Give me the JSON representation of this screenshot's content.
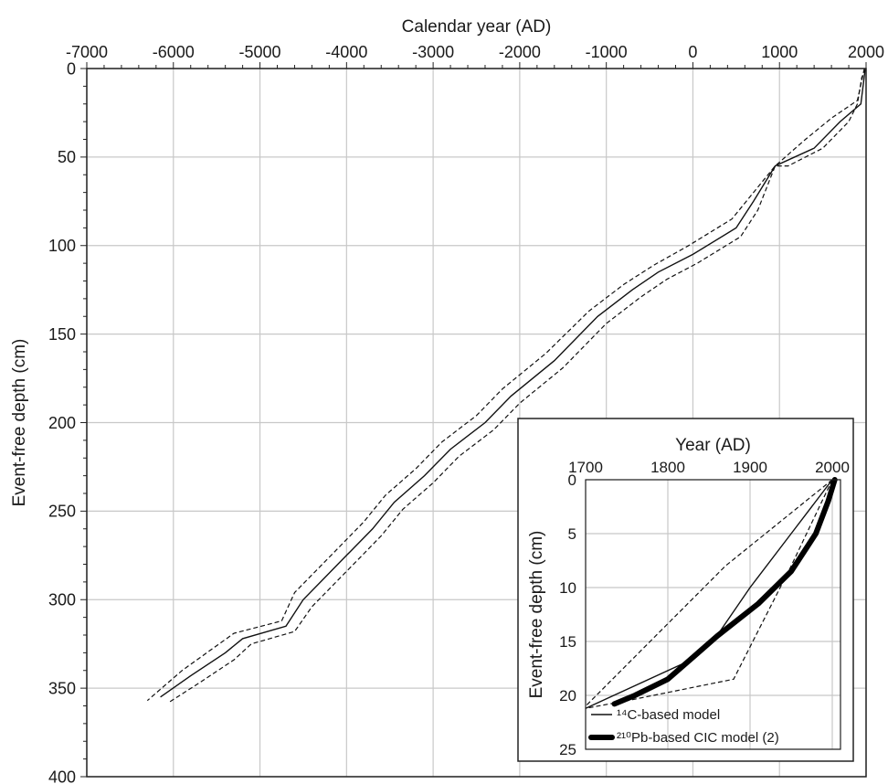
{
  "chart_data": [
    {
      "type": "line",
      "xlabel": "Calendar year (AD)",
      "ylabel": "Event-free depth (cm)",
      "xlim": [
        -7000,
        2000
      ],
      "ylim": [
        0,
        400
      ],
      "y_inverted": true,
      "x_axis_position": "top",
      "grid": true,
      "xticks": [
        -7000,
        -6000,
        -5000,
        -4000,
        -3000,
        -2000,
        -1000,
        0,
        1000,
        2000
      ],
      "yticks": [
        0,
        50,
        100,
        150,
        200,
        250,
        300,
        350,
        400
      ],
      "series": [
        {
          "style": "solid",
          "points": [
            [
              1990,
              0
            ],
            [
              1940,
              20
            ],
            [
              1700,
              30
            ],
            [
              1400,
              45
            ],
            [
              950,
              55
            ],
            [
              700,
              75
            ],
            [
              500,
              90
            ],
            [
              0,
              105
            ],
            [
              -400,
              115
            ],
            [
              -700,
              125
            ],
            [
              -1100,
              140
            ],
            [
              -1600,
              165
            ],
            [
              -2100,
              185
            ],
            [
              -2400,
              200
            ],
            [
              -2800,
              215
            ],
            [
              -3100,
              230
            ],
            [
              -3450,
              245
            ],
            [
              -3700,
              260
            ],
            [
              -4000,
              275
            ],
            [
              -4500,
              300
            ],
            [
              -4700,
              315
            ],
            [
              -5200,
              322
            ],
            [
              -5400,
              330
            ],
            [
              -5800,
              343
            ],
            [
              -6150,
              355
            ]
          ]
        },
        {
          "style": "dashed",
          "points": [
            [
              1980,
              0
            ],
            [
              1900,
              18
            ],
            [
              1600,
              28
            ],
            [
              1300,
              40
            ],
            [
              950,
              55
            ],
            [
              700,
              70
            ],
            [
              450,
              85
            ],
            [
              -50,
              100
            ],
            [
              -450,
              111
            ],
            [
              -800,
              122
            ],
            [
              -1200,
              137
            ],
            [
              -1700,
              161
            ],
            [
              -2200,
              181
            ],
            [
              -2500,
              196
            ],
            [
              -2900,
              211
            ],
            [
              -3200,
              226
            ],
            [
              -3550,
              241
            ],
            [
              -3800,
              256
            ],
            [
              -4100,
              271
            ],
            [
              -4600,
              296
            ],
            [
              -4750,
              312
            ],
            [
              -5300,
              319
            ],
            [
              -5500,
              326
            ],
            [
              -5900,
              340
            ],
            [
              -6300,
              357
            ]
          ]
        },
        {
          "style": "dashed",
          "points": [
            [
              2000,
              0
            ],
            [
              1950,
              5
            ],
            [
              1900,
              20
            ],
            [
              1800,
              30
            ],
            [
              1500,
              45
            ],
            [
              1100,
              55
            ],
            [
              950,
              55
            ],
            [
              750,
              80
            ],
            [
              550,
              95
            ],
            [
              50,
              110
            ],
            [
              -300,
              119
            ],
            [
              -600,
              129
            ],
            [
              -1000,
              144
            ],
            [
              -1500,
              169
            ],
            [
              -2000,
              189
            ],
            [
              -2300,
              204
            ],
            [
              -2700,
              219
            ],
            [
              -3000,
              234
            ],
            [
              -3350,
              249
            ],
            [
              -3600,
              264
            ],
            [
              -3900,
              279
            ],
            [
              -4400,
              304
            ],
            [
              -4600,
              318
            ],
            [
              -5100,
              325
            ],
            [
              -5300,
              334
            ],
            [
              -5700,
              347
            ],
            [
              -6050,
              358
            ]
          ]
        }
      ]
    },
    {
      "type": "line",
      "title": "",
      "xlabel": "Year (AD)",
      "ylabel": "Event-free depth (cm)",
      "xlim": [
        1700,
        2010
      ],
      "ylim": [
        0,
        25
      ],
      "y_inverted": true,
      "x_axis_position": "top",
      "grid": true,
      "xticks": [
        1700,
        1800,
        1900,
        2000
      ],
      "yticks": [
        0,
        5,
        10,
        15,
        20,
        25
      ],
      "legend_position": "bottom-left",
      "series": [
        {
          "name": "¹⁴C-based model",
          "style": "solid-thin",
          "points": [
            [
              2000,
              0
            ],
            [
              1950,
              5
            ],
            [
              1900,
              10
            ],
            [
              1855,
              15
            ],
            [
              1820,
              17
            ],
            [
              1700,
              21.2
            ]
          ]
        },
        {
          "style": "dashed",
          "points": [
            [
              2000,
              0
            ],
            [
              1870,
              8
            ],
            [
              1700,
              21
            ]
          ]
        },
        {
          "style": "dashed",
          "points": [
            [
              2000,
              0
            ],
            [
              1950,
              8
            ],
            [
              1880,
              18.5
            ],
            [
              1750,
              20.5
            ],
            [
              1700,
              21.2
            ]
          ]
        },
        {
          "name": "²¹⁰Pb-based CIC model (2)",
          "style": "solid-thick",
          "points": [
            [
              2003,
              0
            ],
            [
              1995,
              2
            ],
            [
              1980,
              5
            ],
            [
              1950,
              8.5
            ],
            [
              1910,
              11.5
            ],
            [
              1860,
              14.5
            ],
            [
              1830,
              16.5
            ],
            [
              1800,
              18.5
            ],
            [
              1760,
              20
            ],
            [
              1735,
              20.8
            ]
          ]
        }
      ],
      "legend": [
        "¹⁴C-based model",
        "²¹⁰Pb-based CIC model (2)"
      ]
    }
  ]
}
